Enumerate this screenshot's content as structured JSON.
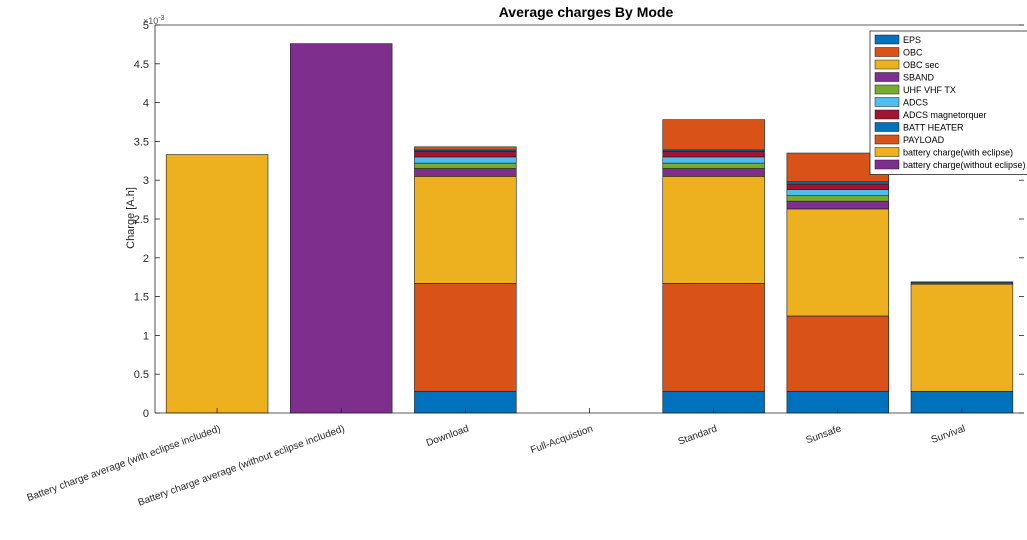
{
  "chart_data": {
    "type": "bar",
    "stacked": true,
    "title": "Average charges By Mode",
    "xlabel": "",
    "ylabel": "Charge [A.h]",
    "y_exponent_label": "×10",
    "y_exponent_power": "-3",
    "ylim": [
      0,
      5
    ],
    "yticks": [
      0,
      0.5,
      1,
      1.5,
      2,
      2.5,
      3,
      3.5,
      4,
      4.5,
      5
    ],
    "ytick_labels": [
      "0",
      "0.5",
      "1",
      "1.5",
      "2",
      "2.5",
      "3",
      "3.5",
      "4",
      "4.5",
      "5"
    ],
    "grid": false,
    "legend_position": "top-right",
    "categories": [
      "Battery charge average (with eclipse included)",
      "Battery charge average (without eclipse included)",
      "Download",
      "Full-Acquistion",
      "Standard",
      "Sunsafe",
      "Survival"
    ],
    "series": [
      {
        "name": "EPS",
        "color": "#0072BD",
        "values": [
          0,
          0,
          0.28,
          0,
          0.28,
          0.28,
          0.28
        ]
      },
      {
        "name": "OBC",
        "color": "#D95319",
        "values": [
          0,
          0,
          1.39,
          0,
          1.39,
          0.97,
          0
        ]
      },
      {
        "name": "OBC sec",
        "color": "#EDB120",
        "values": [
          0,
          0,
          1.38,
          0,
          1.38,
          1.38,
          1.38
        ]
      },
      {
        "name": "SBAND",
        "color": "#7E2F8E",
        "values": [
          0,
          0,
          0.1,
          0,
          0.1,
          0.1,
          0.02
        ]
      },
      {
        "name": "UHF VHF TX",
        "color": "#77AC30",
        "values": [
          0,
          0,
          0.07,
          0,
          0.07,
          0.07,
          0
        ]
      },
      {
        "name": "ADCS",
        "color": "#4DBEEE",
        "values": [
          0,
          0,
          0.08,
          0,
          0.08,
          0.08,
          0.01
        ]
      },
      {
        "name": "ADCS magnetorquer",
        "color": "#A2142F",
        "values": [
          0,
          0,
          0.07,
          0,
          0.07,
          0.07,
          0
        ]
      },
      {
        "name": "BATT HEATER",
        "color": "#0072BD",
        "values": [
          0,
          0,
          0.02,
          0,
          0.02,
          0.03,
          0
        ]
      },
      {
        "name": "PAYLOAD",
        "color": "#D95319",
        "values": [
          0,
          0,
          0.04,
          0,
          0.39,
          0.37,
          0
        ]
      },
      {
        "name": "battery charge(with eclipse)",
        "color": "#EDB120",
        "values": [
          3.33,
          0,
          0,
          0,
          0,
          0,
          0
        ]
      },
      {
        "name": "battery charge(without eclipse)",
        "color": "#7E2F8E",
        "values": [
          0,
          4.76,
          0,
          0,
          0,
          0,
          0
        ]
      }
    ]
  }
}
